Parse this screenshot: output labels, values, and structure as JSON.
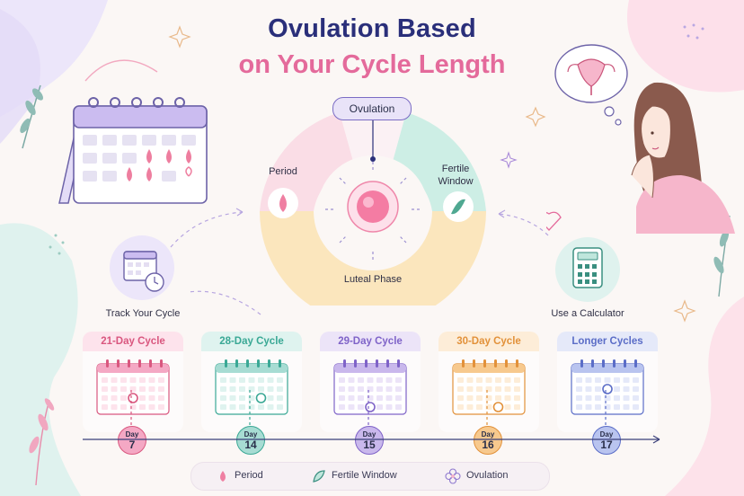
{
  "title": {
    "line1": "Ovulation Based",
    "line2": "on Your Cycle Length"
  },
  "wheel": {
    "top_label": "Ovulation",
    "left_label": "Period",
    "right_label": "Fertile Window",
    "bottom_label": "Luteal Phase"
  },
  "steps": {
    "left": "Track Your Cycle",
    "right": "Use a Calculator"
  },
  "cycles": [
    {
      "name": "21-Day Cycle",
      "day_word": "Day",
      "day": "7",
      "color": "#f4a8c4",
      "dark": "#d9577f",
      "head": "#fde3ec"
    },
    {
      "name": "28-Day Cycle",
      "day_word": "Day",
      "day": "14",
      "color": "#a7dcd3",
      "dark": "#3aa895",
      "head": "#dff3ef"
    },
    {
      "name": "29-Day Cycle",
      "day_word": "Day",
      "day": "15",
      "color": "#c9b8ec",
      "dark": "#7f63c8",
      "head": "#ece4f8"
    },
    {
      "name": "30-Day Cycle",
      "day_word": "Day",
      "day": "16",
      "color": "#f7c98e",
      "dark": "#e2913a",
      "head": "#fdedd8"
    },
    {
      "name": "Longer Cycles",
      "day_word": "Day",
      "day": "17",
      "color": "#b9c4ef",
      "dark": "#5b6dc7",
      "head": "#e5e9f9"
    }
  ],
  "legend": {
    "period": "Period",
    "fertile": "Fertile Window",
    "ovulation": "Ovulation"
  },
  "colors": {
    "navy": "#2a2f7a",
    "pink": "#e46a9b",
    "teal": "#9ad8c8",
    "peach": "#f7dfa6",
    "period_pink": "#f8c9d6"
  }
}
